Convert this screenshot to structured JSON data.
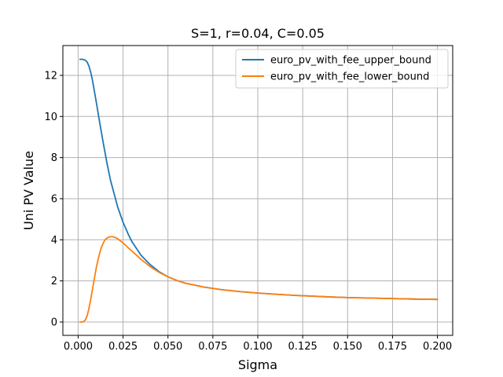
{
  "chart_data": {
    "type": "line",
    "title": "S=1, r=0.04, C=0.05",
    "xlabel": "Sigma",
    "ylabel": "Uni PV Value",
    "xlim": [
      -0.0085,
      0.2085
    ],
    "ylim": [
      -0.65,
      13.45
    ],
    "xticks": [
      0.0,
      0.025,
      0.05,
      0.075,
      0.1,
      0.125,
      0.15,
      0.175,
      0.2
    ],
    "xtick_labels": [
      "0.000",
      "0.025",
      "0.050",
      "0.075",
      "0.100",
      "0.125",
      "0.150",
      "0.175",
      "0.200"
    ],
    "yticks": [
      0,
      2,
      4,
      6,
      8,
      10,
      12
    ],
    "ytick_labels": [
      "0",
      "2",
      "4",
      "6",
      "8",
      "10",
      "12"
    ],
    "grid": true,
    "legend_position": "top-right",
    "series": [
      {
        "name": "euro_pv_with_fee_upper_bound",
        "color": "#1f77b4",
        "x": [
          0.001,
          0.002,
          0.003,
          0.004,
          0.005,
          0.006,
          0.007,
          0.008,
          0.009,
          0.01,
          0.012,
          0.014,
          0.016,
          0.018,
          0.02,
          0.022,
          0.025,
          0.028,
          0.03,
          0.035,
          0.04,
          0.045,
          0.05,
          0.055,
          0.06,
          0.07,
          0.08,
          0.09,
          0.1,
          0.11,
          0.12,
          0.13,
          0.14,
          0.15,
          0.16,
          0.17,
          0.18,
          0.19,
          0.2
        ],
        "y": [
          12.78,
          12.78,
          12.77,
          12.74,
          12.65,
          12.45,
          12.15,
          11.75,
          11.25,
          10.75,
          9.7,
          8.7,
          7.75,
          6.9,
          6.25,
          5.6,
          4.85,
          4.25,
          3.9,
          3.25,
          2.8,
          2.45,
          2.2,
          2.02,
          1.88,
          1.7,
          1.57,
          1.48,
          1.41,
          1.35,
          1.3,
          1.26,
          1.22,
          1.19,
          1.17,
          1.15,
          1.13,
          1.11,
          1.1
        ]
      },
      {
        "name": "euro_pv_with_fee_lower_bound",
        "color": "#ff7f0e",
        "x": [
          0.001,
          0.002,
          0.003,
          0.004,
          0.005,
          0.006,
          0.007,
          0.008,
          0.009,
          0.01,
          0.011,
          0.012,
          0.013,
          0.014,
          0.015,
          0.016,
          0.017,
          0.018,
          0.019,
          0.02,
          0.021,
          0.022,
          0.023,
          0.025,
          0.028,
          0.03,
          0.035,
          0.04,
          0.045,
          0.05,
          0.055,
          0.06,
          0.07,
          0.08,
          0.09,
          0.1,
          0.11,
          0.12,
          0.13,
          0.14,
          0.15,
          0.16,
          0.17,
          0.18,
          0.19,
          0.2
        ],
        "y": [
          0.0,
          0.0,
          0.02,
          0.1,
          0.3,
          0.65,
          1.1,
          1.6,
          2.1,
          2.6,
          3.0,
          3.35,
          3.65,
          3.85,
          4.0,
          4.08,
          4.13,
          4.15,
          4.15,
          4.13,
          4.1,
          4.05,
          3.98,
          3.85,
          3.6,
          3.45,
          3.05,
          2.7,
          2.42,
          2.2,
          2.02,
          1.88,
          1.7,
          1.57,
          1.48,
          1.41,
          1.35,
          1.3,
          1.26,
          1.22,
          1.19,
          1.17,
          1.15,
          1.13,
          1.11,
          1.1
        ]
      }
    ]
  }
}
